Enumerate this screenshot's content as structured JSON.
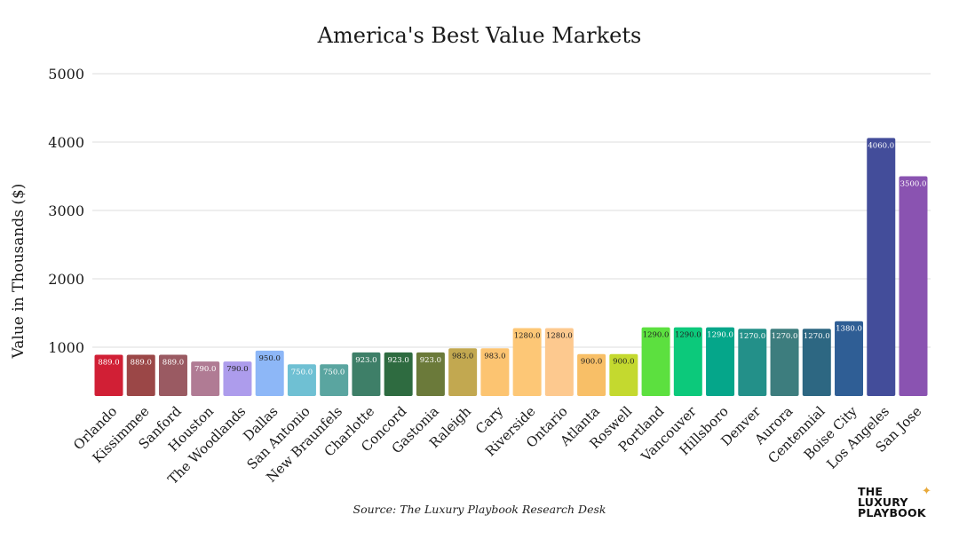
{
  "chart_data": {
    "type": "bar",
    "title": "America's Best Value Markets",
    "xlabel": "",
    "ylabel": "Value in Thousands ($)",
    "ylim": [
      350,
      5000
    ],
    "yticks": [
      1000,
      2000,
      3000,
      4000,
      5000
    ],
    "grid": "horizontal",
    "categories": [
      "Orlando",
      "Kissimmee",
      "Sanford",
      "Houston",
      "The Woodlands",
      "Dallas",
      "San Antonio",
      "New Braunfels",
      "Charlotte",
      "Concord",
      "Gastonia",
      "Raleigh",
      "Cary",
      "Riverside",
      "Ontario",
      "Atlanta",
      "Roswell",
      "Portland",
      "Vancouver",
      "Hillsboro",
      "Denver",
      "Aurora",
      "Centennial",
      "Boise City",
      "Los Angeles",
      "San Jose"
    ],
    "values": [
      889.0,
      889.0,
      889.0,
      790.0,
      790.0,
      950.0,
      750.0,
      750.0,
      923.0,
      923.0,
      923.0,
      983.0,
      983.0,
      1280.0,
      1280.0,
      900.0,
      900.0,
      1290.0,
      1290.0,
      1290.0,
      1270.0,
      1270.0,
      1270.0,
      1380.0,
      4060.0,
      3500.0
    ],
    "value_labels": [
      "889.0",
      "889.0",
      "889.0",
      "790.0",
      "790.0",
      "950.0",
      "750.0",
      "750.0",
      "923.0",
      "923.0",
      "923.0",
      "983.0",
      "983.0",
      "1280.0",
      "1280.0",
      "900.0",
      "900.0",
      "1290.0",
      "1290.0",
      "1290.0",
      "1270.0",
      "1270.0",
      "1270.0",
      "1380.0",
      "4060.0",
      "3500.0"
    ],
    "colors": [
      "#d11f35",
      "#9b4747",
      "#9a5a62",
      "#b07b94",
      "#ad9cec",
      "#8db7f7",
      "#6fc0d3",
      "#5aa5a0",
      "#3e7f68",
      "#2e6b40",
      "#6b7a3a",
      "#c2a850",
      "#fcc471",
      "#fdc776",
      "#fdc98f",
      "#f8bf67",
      "#c4d92f",
      "#5ce03f",
      "#0cc97b",
      "#05a68a",
      "#239089",
      "#3d7d7e",
      "#2d6782",
      "#2f5e95",
      "#434d9a",
      "#8a53b1"
    ],
    "label_colors": [
      "#ffffff",
      "#ffffff",
      "#ffffff",
      "#ffffff",
      "#222222",
      "#222222",
      "#ffffff",
      "#ffffff",
      "#ffffff",
      "#ffffff",
      "#ffffff",
      "#222222",
      "#222222",
      "#222222",
      "#222222",
      "#222222",
      "#222222",
      "#222222",
      "#222222",
      "#ffffff",
      "#ffffff",
      "#ffffff",
      "#ffffff",
      "#ffffff",
      "#ffffff",
      "#ffffff"
    ]
  },
  "footer": {
    "source": "Source: The Luxury Playbook Research Desk",
    "logo_lines": [
      "THE",
      "LUXURY",
      "PLAYBOOK"
    ],
    "logo_star": "✦"
  }
}
